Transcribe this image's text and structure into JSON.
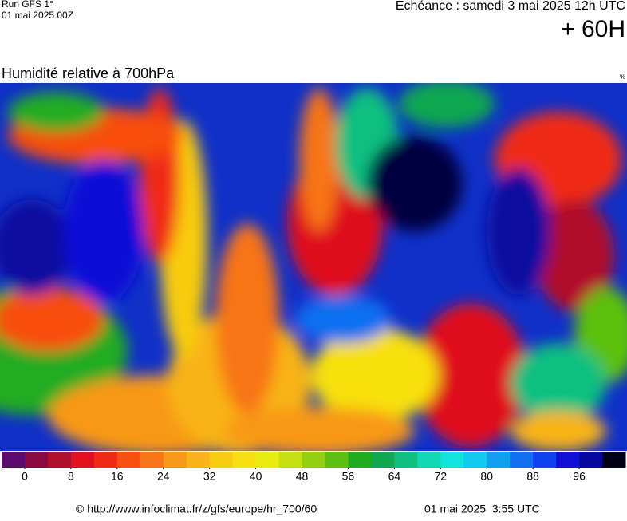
{
  "header": {
    "run": "Run GFS 1°",
    "date": "01 mai 2025 00Z",
    "echeance": "Echéance : samedi 3 mai 2025 12h UTC",
    "lead": "+ 60H"
  },
  "map": {
    "title": "Humidité relative à 700hPa",
    "unit": "%"
  },
  "colorbar": {
    "range": [
      -4,
      104
    ],
    "ticks": [
      0,
      8,
      16,
      24,
      32,
      40,
      48,
      56,
      64,
      72,
      80,
      88,
      96
    ],
    "colors": [
      "#5c0a6e",
      "#8a0a40",
      "#b0102c",
      "#e0101c",
      "#f02a12",
      "#f84e10",
      "#f87418",
      "#f89818",
      "#f8b418",
      "#f8cc10",
      "#f8e010",
      "#e8ec10",
      "#c4e010",
      "#94d010",
      "#5cc010",
      "#20ac20",
      "#10a850",
      "#10c080",
      "#10d8b0",
      "#10e4dc",
      "#10c8f0",
      "#10a0f0",
      "#1070f0",
      "#1040f0",
      "#1010d8",
      "#0808a0",
      "#000018"
    ]
  },
  "footer": {
    "source": "© http://www.infoclimat.fr/z/gfs/europe/hr_700/60",
    "timestamp": "01 mai 2025  3:55 UTC"
  }
}
